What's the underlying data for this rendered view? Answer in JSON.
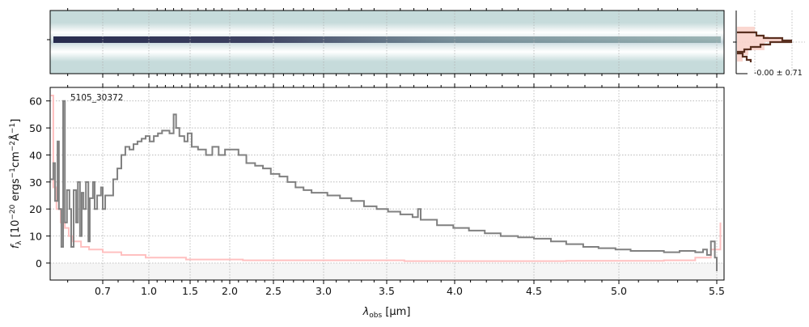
{
  "chart_data": [
    {
      "type": "line",
      "title": "",
      "object_label": "5105_30372",
      "xlabel": "λ_obs [μm]",
      "xlabel_main": "λ",
      "xlabel_sub": "obs",
      "xlabel_unit": " [μm]",
      "ylabel": "f_λ [10^-20 ergs^-1 cm^-2 Å^-1]",
      "ylabel_parts": {
        "f": "f",
        "sub": "λ",
        "a": " [10",
        "e1": "−20",
        "b": " ergs",
        "e2": "−1",
        "c": "cm",
        "e3": "−2",
        "d": "Å",
        "e4": "−1",
        "end": "]"
      },
      "xlim": [
        0.55,
        5.52
      ],
      "ylim": [
        -6.3,
        65
      ],
      "grid": true,
      "xticks": [
        0.7,
        1.0,
        1.5,
        2.0,
        2.5,
        3.0,
        3.5,
        4.0,
        4.5,
        5.0,
        5.5
      ],
      "xtick_labels": [
        "0.7",
        "1.0",
        "1.5",
        "2.0",
        "2.5",
        "3.0",
        "3.5",
        "4.0",
        "4.5",
        "5.0",
        "5.5"
      ],
      "yticks": [
        0,
        10,
        20,
        30,
        40,
        50,
        60
      ],
      "ytick_labels": [
        "0",
        "10",
        "20",
        "30",
        "40",
        "50",
        "60"
      ],
      "series": [
        {
          "name": "flux",
          "color": "#808080",
          "x": [
            0.552,
            0.559,
            0.564,
            0.571,
            0.575,
            0.582,
            0.587,
            0.592,
            0.598,
            0.605,
            0.61,
            0.617,
            0.624,
            0.629,
            0.635,
            0.64,
            0.645,
            0.652,
            0.659,
            0.663,
            0.672,
            0.677,
            0.684,
            0.695,
            0.7,
            0.716,
            0.742,
            0.768,
            0.795,
            0.821,
            0.847,
            0.874,
            0.9,
            0.926,
            0.953,
            0.979,
            1.01,
            1.06,
            1.11,
            1.16,
            1.21,
            1.25,
            1.3,
            1.33,
            1.37,
            1.43,
            1.47,
            1.52,
            1.6,
            1.7,
            1.78,
            1.86,
            1.94,
            2.01,
            2.1,
            2.19,
            2.29,
            2.38,
            2.47,
            2.56,
            2.64,
            2.72,
            2.8,
            2.88,
            2.96,
            3.03,
            3.13,
            3.22,
            3.32,
            3.42,
            3.51,
            3.6,
            3.69,
            3.73,
            3.75,
            3.87,
            3.99,
            4.09,
            4.19,
            4.29,
            4.4,
            4.5,
            4.6,
            4.69,
            4.79,
            4.88,
            4.98,
            5.06,
            5.14,
            5.23,
            5.31,
            5.39,
            5.43,
            5.45,
            5.47,
            5.49,
            5.5
          ],
          "y": [
            31,
            37,
            23,
            45,
            20,
            6,
            60,
            15,
            27,
            20,
            6,
            27,
            15,
            30,
            10,
            26,
            20,
            30,
            8,
            24,
            30,
            20,
            25,
            28,
            20,
            25,
            25,
            31,
            35,
            40,
            43,
            42,
            44,
            45,
            46,
            47,
            45,
            47,
            48,
            49,
            49,
            48,
            55,
            50,
            47,
            45,
            48,
            43,
            42,
            40,
            43,
            40,
            42,
            42,
            40,
            37,
            36,
            35,
            33,
            32,
            30,
            28,
            27,
            26,
            26,
            25,
            24,
            23,
            21,
            20,
            19,
            18,
            17,
            20,
            16,
            14,
            13,
            12,
            11,
            10,
            9.5,
            9,
            8,
            7,
            6,
            5.5,
            5,
            4.5,
            4.5,
            4,
            4.5,
            4,
            5,
            3,
            8,
            2,
            -3
          ]
        },
        {
          "name": "uncertainty",
          "color": "#ffc0c0",
          "x": [
            0.552,
            0.559,
            0.568,
            0.58,
            0.592,
            0.603,
            0.615,
            0.638,
            0.661,
            0.7,
            0.821,
            0.979,
            1.45,
            2.15,
            3.63,
            4.69,
            5.23,
            5.39,
            5.47,
            5.51
          ],
          "y": [
            62,
            28,
            20,
            15,
            13,
            10,
            8,
            6,
            5,
            4,
            3,
            2,
            1.3,
            1,
            0.7,
            0.8,
            1,
            2,
            5,
            15
          ]
        }
      ]
    },
    {
      "type": "heatmap",
      "title": "2D spectrum",
      "description_colors": {
        "background": "#c6dbdb",
        "trace": "#2c2f52"
      }
    },
    {
      "type": "bar",
      "title": "profile histogram",
      "annotation": "-0.00 ± 0.71",
      "values": [
        0.1,
        0.3,
        0.5,
        0.95,
        0.6,
        0.3,
        0.1,
        0.2,
        0.05
      ],
      "colors": {
        "line": "#5a3020",
        "fill": "#f9d3cb"
      }
    }
  ]
}
